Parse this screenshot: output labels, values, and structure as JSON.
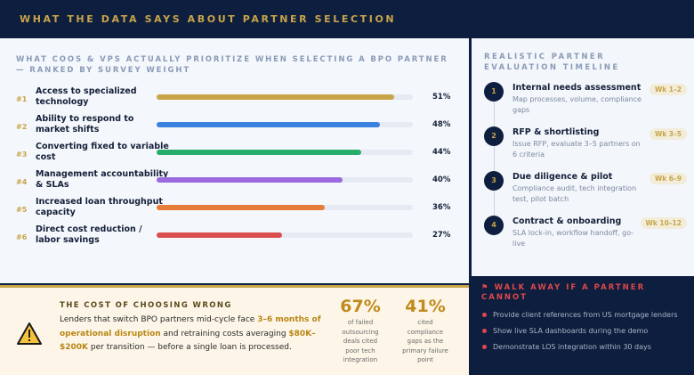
{
  "header": {
    "title": "WHAT THE DATA SAYS ABOUT PARTNER SELECTION"
  },
  "chart_data": {
    "type": "bar",
    "title": "WHAT COOS & VPS ACTUALLY PRIORITIZE WHEN SELECTING A BPO PARTNER — RANKED BY SURVEY WEIGHT",
    "scale_max": 55,
    "items": [
      {
        "rank": "#1",
        "label": "Access to specialized technology",
        "value": 51,
        "display": "51%",
        "color": "#c9a54a"
      },
      {
        "rank": "#2",
        "label": "Ability to respond to market shifts",
        "value": 48,
        "display": "48%",
        "color": "#3b82e0"
      },
      {
        "rank": "#3",
        "label": "Converting fixed to variable cost",
        "value": 44,
        "display": "44%",
        "color": "#27ad6b"
      },
      {
        "rank": "#4",
        "label": "Management accountability & SLAs",
        "value": 40,
        "display": "40%",
        "color": "#9b6ae0"
      },
      {
        "rank": "#5",
        "label": "Increased loan throughput capacity",
        "value": 36,
        "display": "36%",
        "color": "#e67c3a"
      },
      {
        "rank": "#6",
        "label": "Direct cost reduction / labor savings",
        "value": 27,
        "display": "27%",
        "color": "#d94f4f"
      }
    ]
  },
  "timeline": {
    "title": "REALISTIC PARTNER EVALUATION TIMELINE",
    "steps": [
      {
        "num": "1",
        "title": "Internal needs assessment",
        "desc": "Map processes, volume, compliance gaps",
        "weeks": "Wk 1–2"
      },
      {
        "num": "2",
        "title": "RFP & shortlisting",
        "desc": "Issue RFP, evaluate 3–5 partners on 6 criteria",
        "weeks": "Wk 3–5"
      },
      {
        "num": "3",
        "title": "Due diligence & pilot",
        "desc": "Compliance audit, tech integration test, pilot batch",
        "weeks": "Wk 6–9"
      },
      {
        "num": "4",
        "title": "Contract & onboarding",
        "desc": "SLA lock-in, workflow handoff, go-live",
        "weeks": "Wk 10–12"
      }
    ]
  },
  "cost": {
    "title": "THE COST OF CHOOSING WRONG",
    "text_1": "Lenders that switch BPO partners mid-cycle face ",
    "highlight_1": "3–6 months of operational disruption",
    "text_2": " and retraining costs averaging ",
    "highlight_2": "$80K–$200K",
    "text_3": " per transition — before a single loan is processed.",
    "stats": [
      {
        "value": "67%",
        "label": "of failed outsourcing deals cited poor tech integration"
      },
      {
        "value": "41%",
        "label": "cited compliance gaps as the primary failure point"
      }
    ]
  },
  "walk_away": {
    "title": "WALK AWAY IF A PARTNER CANNOT",
    "items": [
      "Provide client references from US mortgage lenders",
      "Show live SLA dashboards during the demo",
      "Demonstrate LOS integration within 30 days"
    ]
  }
}
